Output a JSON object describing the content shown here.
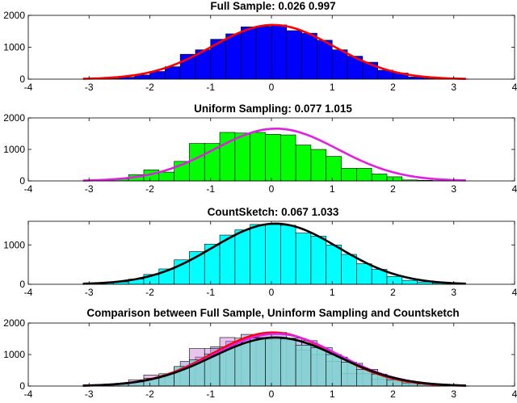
{
  "figure": {
    "panels": [
      {
        "title": "Full Sample:    0.026  0.997",
        "bar_color": "#0000ff",
        "curve_color": "#ff0000",
        "ylim": [
          0,
          2000
        ],
        "yticks": [
          0,
          1000,
          2000
        ],
        "xlim": [
          -4,
          4
        ],
        "xticks": [
          -4,
          -3,
          -2,
          -1,
          0,
          1,
          2,
          3,
          4
        ],
        "gauss": {
          "mean": 0.026,
          "sd": 0.997,
          "peak": 1700
        }
      },
      {
        "title": "Uniform Sampling:   0.077  1.015",
        "bar_color": "#00ff00",
        "curve_color": "#e020e0",
        "ylim": [
          0,
          2000
        ],
        "yticks": [
          0,
          1000,
          2000
        ],
        "xlim": [
          -4,
          4
        ],
        "xticks": [
          -4,
          -3,
          -2,
          -1,
          0,
          1,
          2,
          3,
          4
        ],
        "gauss": {
          "mean": 0.077,
          "sd": 1.015,
          "peak": 1660
        }
      },
      {
        "title": "CountSketch:    0.067  1.033",
        "bar_color": "#00ffff",
        "curve_color": "#000000",
        "ylim": [
          0,
          1600
        ],
        "yticks": [
          0,
          1000
        ],
        "xlim": [
          -4,
          4
        ],
        "xticks": [
          -4,
          -3,
          -2,
          -1,
          0,
          1,
          2,
          3,
          4
        ],
        "gauss": {
          "mean": 0.067,
          "sd": 1.033,
          "peak": 1540
        }
      },
      {
        "title": "Comparison between Full Sample, Uninform Sampling and Countsketch",
        "bar_color": "#7fd9d2",
        "curve_color": "#000000",
        "ylim": [
          0,
          2000
        ],
        "yticks": [
          0,
          1000,
          2000
        ],
        "xlim": [
          -4,
          4
        ],
        "xticks": [
          -4,
          -3,
          -2,
          -1,
          0,
          1,
          2,
          3,
          4
        ]
      }
    ]
  },
  "chart_data": [
    {
      "type": "bar",
      "title": "Full Sample:    0.026  0.997",
      "bin_edges": [
        -3.0,
        -2.75,
        -2.5,
        -2.25,
        -2.0,
        -1.75,
        -1.5,
        -1.25,
        -1.0,
        -0.75,
        -0.5,
        -0.25,
        0.0,
        0.25,
        0.5,
        0.75,
        1.0,
        1.25,
        1.5,
        1.75,
        2.0,
        2.25,
        2.5,
        2.75,
        3.0,
        3.25
      ],
      "values": [
        10,
        25,
        60,
        130,
        240,
        390,
        780,
        920,
        1250,
        1420,
        1640,
        1650,
        1700,
        1520,
        1440,
        1220,
        920,
        720,
        530,
        280,
        190,
        70,
        30,
        10,
        5
      ],
      "fit": {
        "mean": 0.026,
        "sd": 0.997
      },
      "xlim": [
        -4,
        4
      ],
      "ylim": [
        0,
        2000
      ]
    },
    {
      "type": "bar",
      "title": "Uniform Sampling:   0.077  1.015",
      "bin_edges": [
        -2.85,
        -2.6,
        -2.35,
        -2.1,
        -1.85,
        -1.6,
        -1.35,
        -1.1,
        -0.85,
        -0.6,
        -0.35,
        -0.1,
        0.15,
        0.4,
        0.65,
        0.9,
        1.15,
        1.4,
        1.65,
        1.9,
        2.15,
        2.4,
        2.65,
        2.9,
        3.15
      ],
      "values": [
        20,
        60,
        200,
        350,
        280,
        620,
        1190,
        1190,
        1540,
        1520,
        1540,
        1480,
        1460,
        1140,
        1000,
        780,
        400,
        400,
        220,
        130,
        30,
        20,
        10,
        5
      ],
      "fit": {
        "mean": 0.077,
        "sd": 1.015
      },
      "xlim": [
        -4,
        4
      ],
      "ylim": [
        0,
        2000
      ]
    },
    {
      "type": "bar",
      "title": "CountSketch:    0.067  1.033",
      "bin_edges": [
        -3.1,
        -2.85,
        -2.6,
        -2.35,
        -2.1,
        -1.85,
        -1.6,
        -1.35,
        -1.1,
        -0.85,
        -0.6,
        -0.35,
        -0.1,
        0.15,
        0.4,
        0.65,
        0.9,
        1.15,
        1.4,
        1.65,
        1.9,
        2.15,
        2.4,
        2.65,
        2.9,
        3.15
      ],
      "values": [
        15,
        30,
        60,
        130,
        250,
        390,
        620,
        830,
        1020,
        1250,
        1380,
        1520,
        1520,
        1500,
        1300,
        1220,
        1000,
        760,
        520,
        380,
        200,
        100,
        60,
        30,
        10
      ],
      "fit": {
        "mean": 0.067,
        "sd": 1.033
      },
      "xlim": [
        -4,
        4
      ],
      "ylim": [
        0,
        1600
      ]
    },
    {
      "type": "bar",
      "title": "Comparison between Full Sample, Uninform Sampling and Countsketch",
      "series": [
        {
          "name": "Full Sample",
          "fit": {
            "mean": 0.026,
            "sd": 0.997
          }
        },
        {
          "name": "Uniform Sampling",
          "fit": {
            "mean": 0.077,
            "sd": 1.015
          }
        },
        {
          "name": "CountSketch",
          "fit": {
            "mean": 0.067,
            "sd": 1.033
          }
        }
      ],
      "xlim": [
        -4,
        4
      ],
      "ylim": [
        0,
        2000
      ]
    }
  ]
}
